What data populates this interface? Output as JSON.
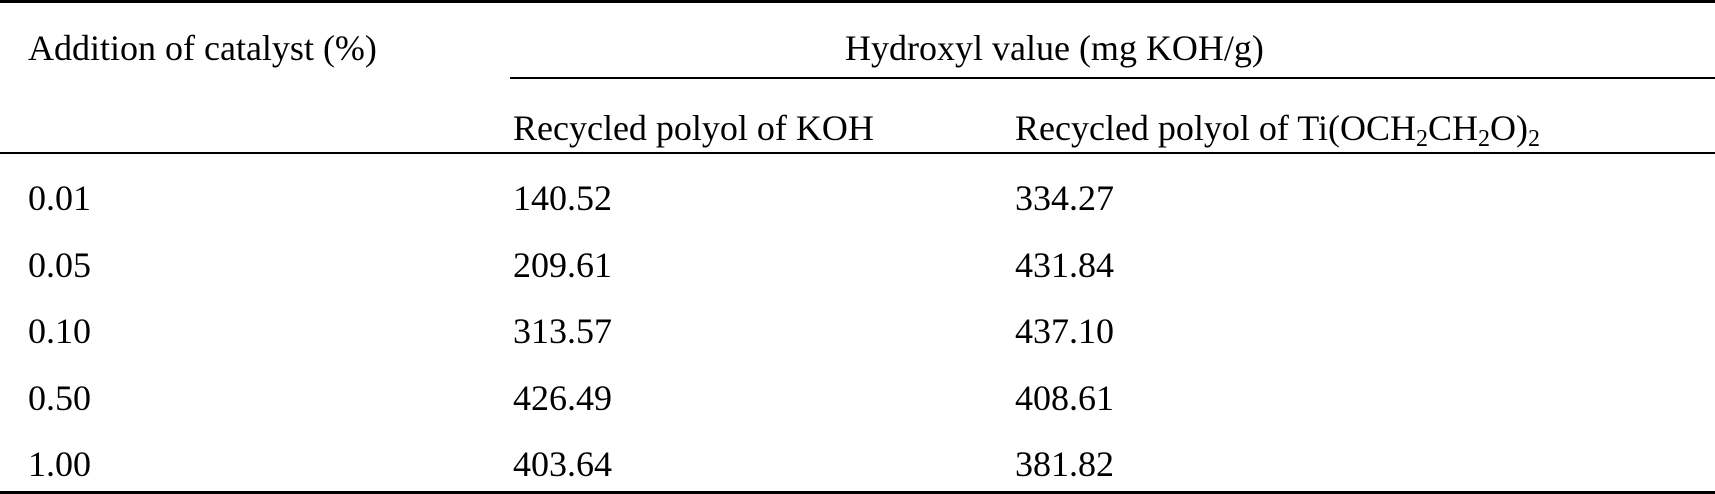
{
  "table": {
    "header": {
      "row_label": "Addition of catalyst (%)",
      "group_label": "Hydroxyl value (mg KOH/g)",
      "col1": "Recycled polyol of KOH",
      "col2": {
        "prefix": "Recycled polyol of Ti(OCH",
        "sub1": "2",
        "mid1": "CH",
        "sub2": "2",
        "mid2": "O)",
        "sub3": "2"
      }
    },
    "rows": [
      {
        "catalyst": "0.01",
        "koh": "140.52",
        "ti": "334.27"
      },
      {
        "catalyst": "0.05",
        "koh": "209.61",
        "ti": "431.84"
      },
      {
        "catalyst": "0.10",
        "koh": "313.57",
        "ti": "437.10"
      },
      {
        "catalyst": "0.50",
        "koh": "426.49",
        "ti": "408.61"
      },
      {
        "catalyst": "1.00",
        "koh": "403.64",
        "ti": "381.82"
      }
    ]
  }
}
